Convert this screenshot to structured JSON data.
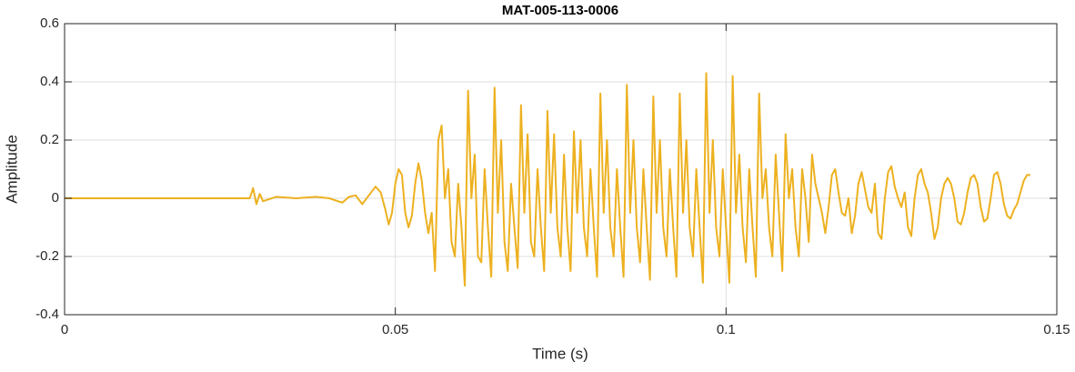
{
  "chart_data": {
    "type": "line",
    "title": "MAT-005-113-0006",
    "x_label": "Time (s)",
    "y_label": "Amplitude",
    "x": [
      0,
      0.01,
      0.02,
      0.028,
      0.0285,
      0.029,
      0.0295,
      0.03,
      0.032,
      0.035,
      0.038,
      0.04,
      0.042,
      0.043,
      0.044,
      0.045,
      0.046,
      0.047,
      0.0478,
      0.0485,
      0.049,
      0.0495,
      0.05,
      0.0505,
      0.051,
      0.0515,
      0.052,
      0.0525,
      0.053,
      0.0535,
      0.054,
      0.0545,
      0.055,
      0.0555,
      0.056,
      0.0565,
      0.057,
      0.0575,
      0.058,
      0.0585,
      0.059,
      0.0595,
      0.06,
      0.0605,
      0.061,
      0.0615,
      0.062,
      0.0625,
      0.063,
      0.0635,
      0.064,
      0.0645,
      0.065,
      0.0655,
      0.066,
      0.0665,
      0.067,
      0.0675,
      0.068,
      0.0685,
      0.069,
      0.0695,
      0.07,
      0.0705,
      0.071,
      0.0715,
      0.072,
      0.0725,
      0.073,
      0.0735,
      0.074,
      0.0745,
      0.075,
      0.0755,
      0.076,
      0.0765,
      0.077,
      0.0775,
      0.078,
      0.0785,
      0.079,
      0.0795,
      0.08,
      0.0805,
      0.081,
      0.0815,
      0.082,
      0.0825,
      0.083,
      0.0835,
      0.084,
      0.0845,
      0.085,
      0.0855,
      0.086,
      0.0865,
      0.087,
      0.0875,
      0.088,
      0.0885,
      0.089,
      0.0895,
      0.09,
      0.0905,
      0.091,
      0.0915,
      0.092,
      0.0925,
      0.093,
      0.0935,
      0.094,
      0.0945,
      0.095,
      0.0955,
      0.096,
      0.0965,
      0.097,
      0.0975,
      0.098,
      0.0985,
      0.099,
      0.0995,
      0.1,
      0.1005,
      0.101,
      0.1015,
      0.102,
      0.1025,
      0.103,
      0.1035,
      0.104,
      0.1045,
      0.105,
      0.1055,
      0.106,
      0.1065,
      0.107,
      0.1075,
      0.108,
      0.1085,
      0.109,
      0.1095,
      0.11,
      0.1105,
      0.111,
      0.1115,
      0.112,
      0.1125,
      0.113,
      0.1135,
      0.114,
      0.1145,
      0.115,
      0.1155,
      0.116,
      0.1165,
      0.117,
      0.1175,
      0.118,
      0.1185,
      0.119,
      0.1195,
      0.12,
      0.1205,
      0.121,
      0.1215,
      0.122,
      0.1225,
      0.123,
      0.1235,
      0.124,
      0.1245,
      0.125,
      0.1255,
      0.126,
      0.1265,
      0.127,
      0.1275,
      0.128,
      0.1285,
      0.129,
      0.1295,
      0.13,
      0.1305,
      0.131,
      0.1315,
      0.132,
      0.1325,
      0.133,
      0.1335,
      0.134,
      0.1345,
      0.135,
      0.1355,
      0.136,
      0.1365,
      0.137,
      0.1375,
      0.138,
      0.1385,
      0.139,
      0.1395,
      0.14,
      0.1405,
      0.141,
      0.1415,
      0.142,
      0.1425,
      0.143,
      0.1435,
      0.144,
      0.1445,
      0.145,
      0.1455,
      0.146
    ],
    "series": [
      {
        "color": "#EDB120",
        "values": [
          0,
          0,
          0,
          0,
          0.035,
          -0.02,
          0.015,
          -0.01,
          0.005,
          0,
          0.005,
          0,
          -0.015,
          0.005,
          0.01,
          -0.02,
          0.01,
          0.04,
          0.02,
          -0.04,
          -0.09,
          -0.05,
          0.05,
          0.1,
          0.08,
          -0.05,
          -0.1,
          -0.06,
          0.05,
          0.12,
          0.06,
          -0.05,
          -0.12,
          -0.05,
          -0.25,
          0.2,
          0.25,
          0.0,
          0.1,
          -0.15,
          -0.2,
          0.05,
          -0.1,
          -0.3,
          0.37,
          0.0,
          0.15,
          -0.2,
          -0.22,
          0.1,
          -0.1,
          -0.27,
          0.38,
          -0.05,
          0.2,
          -0.15,
          -0.25,
          0.05,
          -0.1,
          -0.24,
          0.32,
          -0.05,
          0.22,
          -0.15,
          -0.2,
          0.1,
          -0.1,
          -0.25,
          0.3,
          -0.05,
          0.22,
          -0.1,
          -0.2,
          0.15,
          -0.1,
          -0.25,
          0.23,
          -0.05,
          0.2,
          -0.1,
          -0.2,
          0.1,
          -0.1,
          -0.27,
          0.36,
          -0.05,
          0.2,
          -0.1,
          -0.2,
          0.1,
          -0.1,
          -0.27,
          0.39,
          -0.05,
          0.2,
          -0.1,
          -0.22,
          0.1,
          -0.1,
          -0.28,
          0.35,
          -0.05,
          0.2,
          -0.1,
          -0.2,
          0.1,
          -0.1,
          -0.27,
          0.36,
          -0.05,
          0.2,
          -0.1,
          -0.2,
          0.1,
          -0.1,
          -0.29,
          0.43,
          -0.05,
          0.2,
          -0.1,
          -0.2,
          0.1,
          -0.1,
          -0.29,
          0.42,
          -0.05,
          0.15,
          -0.1,
          -0.22,
          0.1,
          -0.1,
          -0.27,
          0.36,
          0.0,
          0.1,
          -0.1,
          -0.2,
          0.15,
          -0.05,
          -0.25,
          0.22,
          0.0,
          0.1,
          -0.1,
          -0.2,
          0.1,
          0.0,
          -0.15,
          0.15,
          0.05,
          0.0,
          -0.05,
          -0.12,
          -0.03,
          0.08,
          0.1,
          0.02,
          -0.05,
          -0.06,
          0.0,
          -0.12,
          -0.06,
          0.05,
          0.09,
          0.03,
          -0.03,
          -0.05,
          0.05,
          -0.12,
          -0.14,
          0.0,
          0.09,
          0.11,
          0.04,
          0.0,
          -0.03,
          0.02,
          -0.1,
          -0.13,
          0.0,
          0.08,
          0.1,
          0.05,
          0.02,
          -0.05,
          -0.14,
          -0.1,
          0.0,
          0.05,
          0.07,
          0.05,
          0.0,
          -0.08,
          -0.09,
          -0.05,
          0.02,
          0.07,
          0.08,
          0.05,
          -0.03,
          -0.08,
          -0.07,
          0.0,
          0.08,
          0.09,
          0.05,
          -0.02,
          -0.06,
          -0.07,
          -0.04,
          -0.02,
          0.02,
          0.06,
          0.08,
          0.08
        ]
      }
    ],
    "xlim": [
      0,
      0.15
    ],
    "xticks": [
      0,
      0.05,
      0.1,
      0.15
    ],
    "ylim": [
      -0.4,
      0.6
    ],
    "yticks": [
      -0.4,
      -0.2,
      0,
      0.2,
      0.4,
      0.6
    ],
    "grid": true
  }
}
